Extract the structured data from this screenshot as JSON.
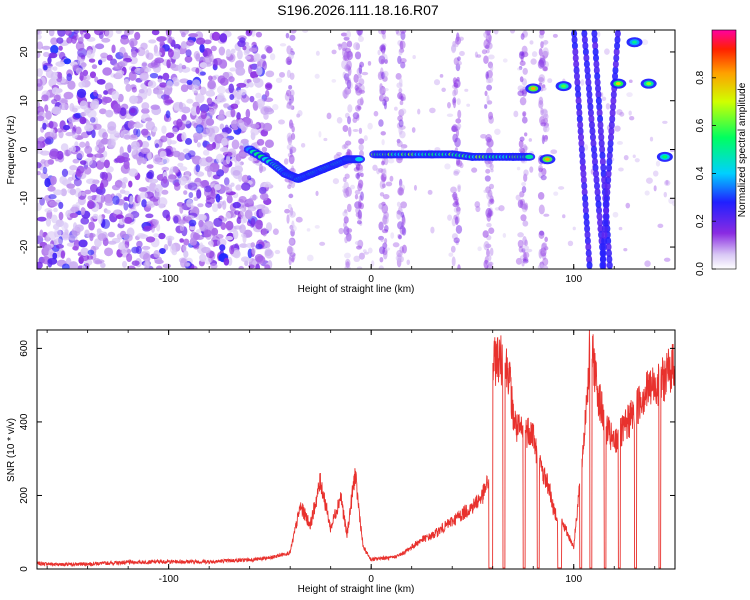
{
  "title": "S196.2026.111.18.16.R07",
  "chart_data": [
    {
      "type": "heatmap",
      "name": "spectrogram",
      "xlabel": "Height of straight line (km)",
      "ylabel": "Frequency (Hz)",
      "xlim": [
        -165,
        150
      ],
      "ylim": [
        -24.5,
        24.5
      ],
      "xticks": [
        -100,
        0,
        100
      ],
      "yticks": [
        -20,
        -10,
        0,
        10,
        20
      ],
      "colorbar": {
        "label": "Normalized spectral amplitude",
        "range": [
          0.0,
          1.0
        ],
        "ticks": [
          0.0,
          0.2,
          0.4,
          0.6,
          0.8
        ],
        "tick_labels": [
          "0.0",
          "0.2",
          "0.4",
          "0.6",
          "0.8"
        ]
      },
      "features": [
        {
          "kind": "band",
          "x": [
            -60,
            -48,
            -42,
            -36,
            -30,
            -24,
            -18,
            -12,
            -6
          ],
          "y": [
            0,
            -3,
            -5,
            -6,
            -5,
            -4,
            -3,
            -2,
            -2
          ],
          "amp": 0.45
        },
        {
          "kind": "band",
          "x": [
            2,
            10,
            20,
            30,
            40,
            50,
            60,
            70,
            78
          ],
          "y": [
            -1,
            -1,
            -1,
            -1,
            -1,
            -1.5,
            -1.5,
            -1.5,
            -1.5
          ],
          "amp": 0.55
        },
        {
          "kind": "blob",
          "x": 80,
          "y": 12.5,
          "amp": 0.8
        },
        {
          "kind": "blob",
          "x": 87,
          "y": -2,
          "amp": 0.8
        },
        {
          "kind": "blob",
          "x": 95,
          "y": 13,
          "amp": 0.6
        },
        {
          "kind": "blob",
          "x": 122,
          "y": 13.5,
          "amp": 0.75
        },
        {
          "kind": "blob",
          "x": 137,
          "y": 13.5,
          "amp": 0.65
        },
        {
          "kind": "blob",
          "x": 130,
          "y": 22,
          "amp": 0.5
        },
        {
          "kind": "blob",
          "x": 145,
          "y": -1.5,
          "amp": 0.55
        }
      ]
    },
    {
      "type": "line",
      "name": "snr",
      "xlabel": "Height of straight line (km)",
      "ylabel": "SNR (10 * v/v)",
      "xlim": [
        -165,
        150
      ],
      "ylim": [
        0,
        650
      ],
      "xticks": [
        -100,
        0,
        100
      ],
      "yticks": [
        0,
        200,
        400,
        600
      ],
      "color": "#e8312d",
      "x": [
        -165,
        -150,
        -120,
        -100,
        -80,
        -60,
        -50,
        -40,
        -35,
        -30,
        -25,
        -20,
        -15,
        -12,
        -8,
        -4,
        0,
        5,
        10,
        15,
        20,
        25,
        30,
        35,
        40,
        45,
        50,
        55,
        58,
        60,
        62,
        65,
        68,
        70,
        72,
        75,
        78,
        80,
        82,
        85,
        88,
        90,
        95,
        100,
        105,
        108,
        110,
        112,
        115,
        118,
        120,
        125,
        130,
        135,
        140,
        145,
        150
      ],
      "y": [
        15,
        12,
        18,
        20,
        20,
        25,
        30,
        45,
        170,
        120,
        240,
        110,
        200,
        90,
        260,
        60,
        25,
        30,
        30,
        40,
        60,
        80,
        90,
        110,
        130,
        150,
        170,
        200,
        240,
        540,
        580,
        560,
        540,
        420,
        380,
        370,
        380,
        370,
        300,
        260,
        220,
        160,
        120,
        60,
        350,
        600,
        560,
        480,
        400,
        360,
        340,
        380,
        430,
        480,
        500,
        520,
        560
      ]
    }
  ]
}
